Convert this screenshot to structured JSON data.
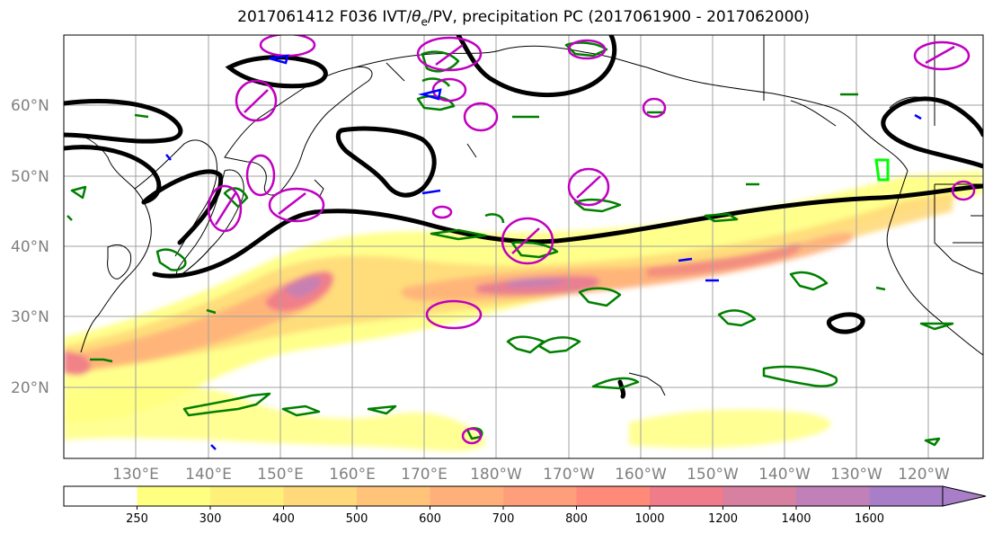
{
  "title": {
    "prefix": "2017061412 F036 IVT/",
    "theta": "θ",
    "theta_sub": "e",
    "suffix": "/PV, precipitation PC (2017061900 - 2017062000)"
  },
  "map": {
    "lat_labels": [
      "60°N",
      "50°N",
      "40°N",
      "30°N",
      "20°N"
    ],
    "lon_labels": [
      "130°E",
      "140°E",
      "150°E",
      "160°E",
      "170°E",
      "180°W",
      "170°W",
      "160°W",
      "150°W",
      "140°W",
      "130°W",
      "120°W"
    ]
  },
  "legend": {
    "levels": [
      "250",
      "300",
      "400",
      "500",
      "600",
      "700",
      "800",
      "1000",
      "1200",
      "1400",
      "1600"
    ],
    "colors": [
      "#ffffff",
      "#ffff80",
      "#fff07a",
      "#ffd97a",
      "#ffc47a",
      "#ffb07a",
      "#ff9e7a",
      "#ff8a7a",
      "#f07c8a",
      "#d880a0",
      "#c080b8",
      "#a87ec8"
    ]
  },
  "colors": {
    "ivt_contour": "#000000",
    "theta_e_contour": "#008000",
    "pv_contour": "#c000c0",
    "blue_contour": "#0000ff",
    "highlight_contour": "#00ff00",
    "coastline": "#000000",
    "gridline": "#a0a0a0"
  }
}
